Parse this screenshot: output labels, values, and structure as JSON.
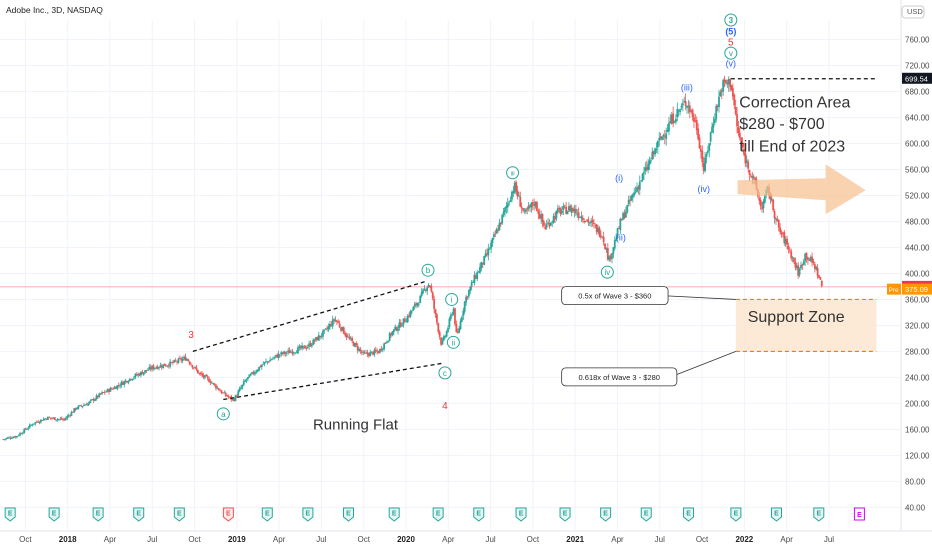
{
  "header": {
    "symbol_title": "Adobe Inc., 3D, NASDAQ",
    "currency": "USD"
  },
  "colors": {
    "up": "#26a69a",
    "down": "#ef5350",
    "wave_green": "#26a69a",
    "wave_blue": "#2962ff",
    "wave_red": "#e53935",
    "arrow": "#f6c08f",
    "zone": "#fbe5cf",
    "zone_line": "#f57c00",
    "price_line": "#f23645",
    "pre_badge": "#ff9800"
  },
  "chart_data": {
    "type": "candlestick",
    "title": "Adobe Inc., 3D, NASDAQ",
    "xlabel": "",
    "ylabel": "USD",
    "ylim": [
      36,
      790
    ],
    "y_ticks": [
      40,
      80,
      120,
      160,
      200,
      240,
      280,
      320,
      360,
      400,
      440,
      480,
      520,
      560,
      600,
      640,
      680,
      720,
      760
    ],
    "x_ticks": [
      {
        "label": "Oct",
        "t": 2017.75,
        "bold": false
      },
      {
        "label": "2018",
        "t": 2018.0,
        "bold": true
      },
      {
        "label": "Apr",
        "t": 2018.25,
        "bold": false
      },
      {
        "label": "Jul",
        "t": 2018.5,
        "bold": false
      },
      {
        "label": "Oct",
        "t": 2018.75,
        "bold": false
      },
      {
        "label": "2019",
        "t": 2019.0,
        "bold": true
      },
      {
        "label": "Apr",
        "t": 2019.25,
        "bold": false
      },
      {
        "label": "Jul",
        "t": 2019.5,
        "bold": false
      },
      {
        "label": "Oct",
        "t": 2019.75,
        "bold": false
      },
      {
        "label": "2020",
        "t": 2020.0,
        "bold": true
      },
      {
        "label": "Apr",
        "t": 2020.25,
        "bold": false
      },
      {
        "label": "Jul",
        "t": 2020.5,
        "bold": false
      },
      {
        "label": "Oct",
        "t": 2020.75,
        "bold": false
      },
      {
        "label": "2021",
        "t": 2021.0,
        "bold": true
      },
      {
        "label": "Apr",
        "t": 2021.25,
        "bold": false
      },
      {
        "label": "Jul",
        "t": 2021.5,
        "bold": false
      },
      {
        "label": "Oct",
        "t": 2021.75,
        "bold": false
      },
      {
        "label": "2022",
        "t": 2022.0,
        "bold": true
      },
      {
        "label": "Apr",
        "t": 2022.25,
        "bold": false
      },
      {
        "label": "Jul",
        "t": 2022.5,
        "bold": false
      }
    ],
    "price_path": [
      [
        2017.62,
        145
      ],
      [
        2017.7,
        150
      ],
      [
        2017.8,
        170
      ],
      [
        2017.88,
        178
      ],
      [
        2017.98,
        175
      ],
      [
        2018.05,
        193
      ],
      [
        2018.12,
        200
      ],
      [
        2018.2,
        215
      ],
      [
        2018.28,
        225
      ],
      [
        2018.38,
        240
      ],
      [
        2018.5,
        255
      ],
      [
        2018.62,
        262
      ],
      [
        2018.7,
        270
      ],
      [
        2018.78,
        245
      ],
      [
        2018.84,
        235
      ],
      [
        2018.92,
        215
      ],
      [
        2018.98,
        205
      ],
      [
        2019.05,
        235
      ],
      [
        2019.15,
        260
      ],
      [
        2019.25,
        275
      ],
      [
        2019.35,
        282
      ],
      [
        2019.42,
        288
      ],
      [
        2019.52,
        310
      ],
      [
        2019.58,
        330
      ],
      [
        2019.66,
        300
      ],
      [
        2019.75,
        275
      ],
      [
        2019.84,
        280
      ],
      [
        2019.92,
        310
      ],
      [
        2020.0,
        330
      ],
      [
        2020.08,
        360
      ],
      [
        2020.12,
        380
      ],
      [
        2020.14,
        385
      ],
      [
        2020.17,
        340
      ],
      [
        2020.21,
        290
      ],
      [
        2020.24,
        310
      ],
      [
        2020.28,
        348
      ],
      [
        2020.3,
        300
      ],
      [
        2020.35,
        360
      ],
      [
        2020.4,
        390
      ],
      [
        2020.48,
        430
      ],
      [
        2020.56,
        480
      ],
      [
        2020.64,
        535
      ],
      [
        2020.7,
        490
      ],
      [
        2020.76,
        510
      ],
      [
        2020.82,
        470
      ],
      [
        2020.9,
        495
      ],
      [
        2020.98,
        500
      ],
      [
        2021.08,
        480
      ],
      [
        2021.16,
        460
      ],
      [
        2021.2,
        420
      ],
      [
        2021.27,
        480
      ],
      [
        2021.34,
        520
      ],
      [
        2021.42,
        560
      ],
      [
        2021.5,
        605
      ],
      [
        2021.58,
        640
      ],
      [
        2021.66,
        665
      ],
      [
        2021.72,
        625
      ],
      [
        2021.76,
        560
      ],
      [
        2021.82,
        640
      ],
      [
        2021.87,
        690
      ],
      [
        2021.92,
        695
      ],
      [
        2021.96,
        620
      ],
      [
        2022.0,
        580
      ],
      [
        2022.06,
        540
      ],
      [
        2022.1,
        500
      ],
      [
        2022.14,
        530
      ],
      [
        2022.2,
        470
      ],
      [
        2022.26,
        440
      ],
      [
        2022.32,
        400
      ],
      [
        2022.36,
        430
      ],
      [
        2022.42,
        410
      ],
      [
        2022.46,
        379
      ]
    ],
    "price_labels": [
      {
        "value": 699.54,
        "text": "699.54",
        "style": "dark"
      },
      {
        "value": 379.33,
        "text": "379.33",
        "style": "red"
      },
      {
        "value": 375.09,
        "text": "375.09",
        "style": "orange",
        "tag": "Pre"
      }
    ],
    "horizontal_line": {
      "value": 379.33
    },
    "support_zone": {
      "top": 360,
      "bottom": 280,
      "t_start": 2021.95,
      "t_end": 2022.78
    },
    "high_line": {
      "value": 699.54,
      "t_start": 2021.92,
      "t_end": 2022.78
    },
    "running_flat": {
      "upper": [
        [
          2018.74,
          280
        ],
        [
          2020.12,
          388
        ]
      ],
      "lower": [
        [
          2018.92,
          206
        ],
        [
          2020.22,
          262
        ]
      ],
      "label": "Running Flat"
    },
    "wave_labels": [
      {
        "t": 2018.73,
        "v": 305,
        "text": "3",
        "style": "red"
      },
      {
        "t": 2018.92,
        "v": 184,
        "text": "a",
        "style": "green-circle"
      },
      {
        "t": 2020.13,
        "v": 405,
        "text": "b",
        "style": "green-circle"
      },
      {
        "t": 2020.23,
        "v": 247,
        "text": "c",
        "style": "green-circle"
      },
      {
        "t": 2020.23,
        "v": 196,
        "text": "4",
        "style": "red"
      },
      {
        "t": 2020.27,
        "v": 360,
        "text": "i",
        "style": "green-circle"
      },
      {
        "t": 2020.28,
        "v": 294,
        "text": "ii",
        "style": "green-circle"
      },
      {
        "t": 2020.63,
        "v": 555,
        "text": "iii",
        "style": "green-circle"
      },
      {
        "t": 2021.19,
        "v": 402,
        "text": "iv",
        "style": "green-circle"
      },
      {
        "t": 2021.26,
        "v": 547,
        "text": "(i)",
        "style": "blue"
      },
      {
        "t": 2021.27,
        "v": 455,
        "text": "(ii)",
        "style": "blue"
      },
      {
        "t": 2021.66,
        "v": 686,
        "text": "(iii)",
        "style": "blue"
      },
      {
        "t": 2021.76,
        "v": 530,
        "text": "(iv)",
        "style": "blue"
      },
      {
        "t": 2021.92,
        "v": 723,
        "text": "(v)",
        "style": "blue"
      },
      {
        "t": 2021.92,
        "v": 739,
        "text": "v",
        "style": "green-circle"
      },
      {
        "t": 2021.92,
        "v": 755,
        "text": "5",
        "style": "red"
      },
      {
        "t": 2021.92,
        "v": 772,
        "text": "(5)",
        "style": "blue-bold"
      },
      {
        "t": 2021.92,
        "v": 790,
        "text": "3",
        "style": "green-circle-bold"
      }
    ],
    "annotations": [
      {
        "text": "Correction Area",
        "t": 2021.97,
        "v": 655,
        "size": 16
      },
      {
        "text": "$280 - $700",
        "t": 2021.97,
        "v": 622,
        "size": 16
      },
      {
        "text": "till End of 2023",
        "t": 2021.97,
        "v": 588,
        "size": 16
      },
      {
        "text": "Support Zone",
        "t": 2022.02,
        "v": 325,
        "size": 16
      }
    ],
    "callouts": [
      {
        "text": "0.5x of Wave 3 - $360",
        "box": [
          2020.92,
          352
        ],
        "target": [
          2021.95,
          360
        ]
      },
      {
        "text": "0.618x of Wave 3 - $280",
        "box": [
          2020.92,
          227
        ],
        "target": [
          2021.95,
          280
        ]
      }
    ],
    "earnings_markers": {
      "label": "E",
      "t": [
        2017.66,
        2017.92,
        2018.18,
        2018.42,
        2018.66,
        2018.95,
        2019.18,
        2019.42,
        2019.66,
        2019.93,
        2020.19,
        2020.43,
        2020.68,
        2020.94,
        2021.18,
        2021.42,
        2021.67,
        2021.95,
        2022.19,
        2022.44
      ],
      "highlight_index": 5,
      "future_t": 2022.68
    }
  }
}
